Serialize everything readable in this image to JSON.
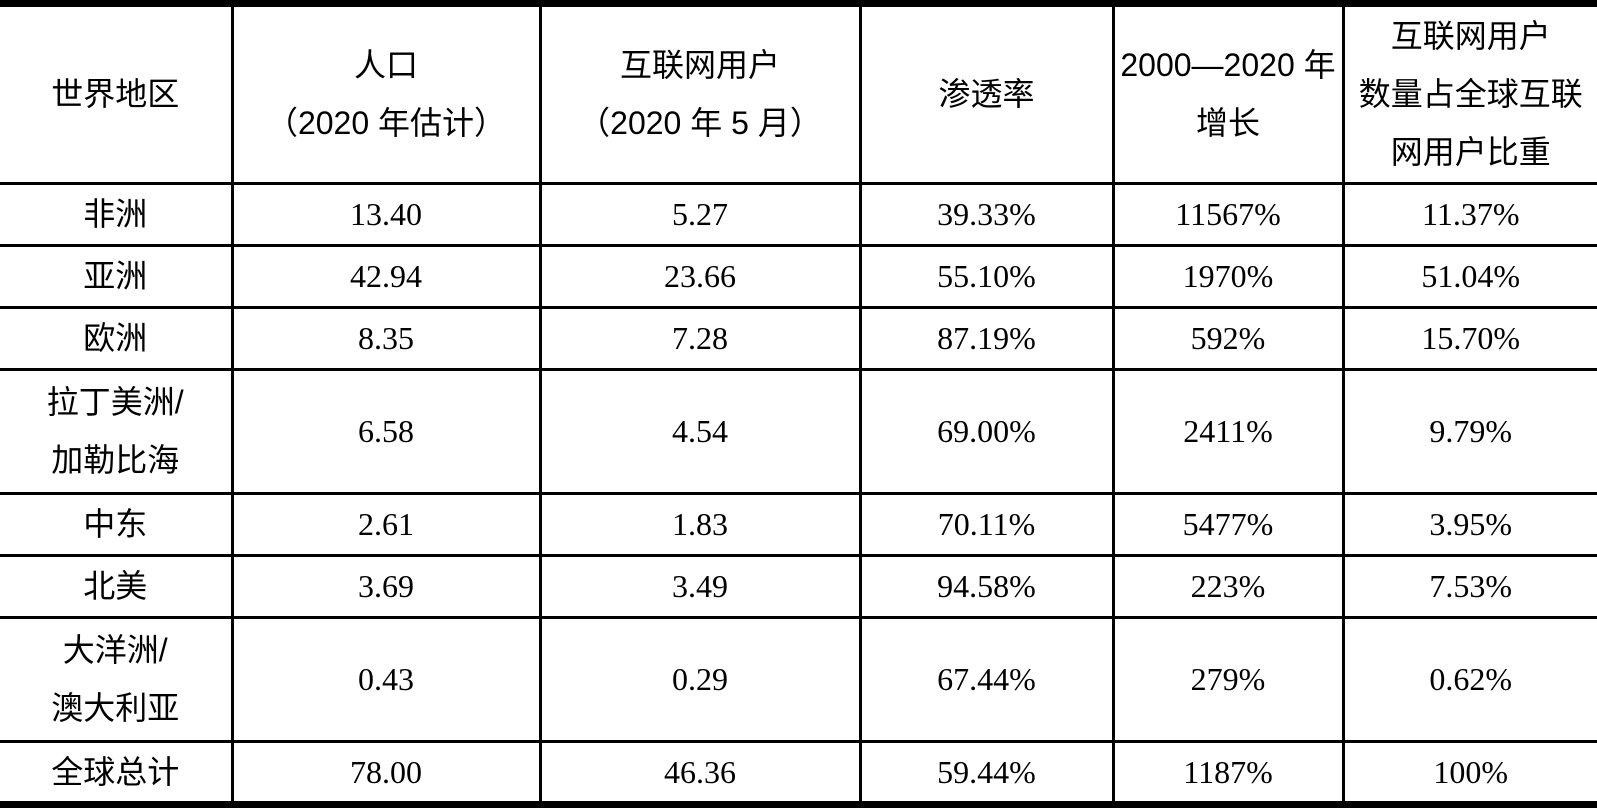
{
  "table": {
    "columns": [
      {
        "key": "region",
        "lines": [
          "世界地区"
        ]
      },
      {
        "key": "population",
        "lines": [
          "人口",
          "（2020 年估计）"
        ]
      },
      {
        "key": "internet_users",
        "lines": [
          "互联网用户",
          "（2020 年 5 月）"
        ]
      },
      {
        "key": "penetration",
        "lines": [
          "渗透率"
        ]
      },
      {
        "key": "growth",
        "lines": [
          "2000—2020 年",
          "增长"
        ]
      },
      {
        "key": "share",
        "lines": [
          "互联网用户",
          "数量占全球互联",
          "网用户比重"
        ]
      }
    ],
    "rows": [
      {
        "region": [
          "非洲"
        ],
        "values": [
          "13.40",
          "5.27",
          "39.33%",
          "11567%",
          "11.37%"
        ]
      },
      {
        "region": [
          "亚洲"
        ],
        "values": [
          "42.94",
          "23.66",
          "55.10%",
          "1970%",
          "51.04%"
        ]
      },
      {
        "region": [
          "欧洲"
        ],
        "values": [
          "8.35",
          "7.28",
          "87.19%",
          "592%",
          "15.70%"
        ]
      },
      {
        "region": [
          "拉丁美洲/",
          "加勒比海"
        ],
        "values": [
          "6.58",
          "4.54",
          "69.00%",
          "2411%",
          "9.79%"
        ]
      },
      {
        "region": [
          "中东"
        ],
        "values": [
          "2.61",
          "1.83",
          "70.11%",
          "5477%",
          "3.95%"
        ]
      },
      {
        "region": [
          "北美"
        ],
        "values": [
          "3.69",
          "3.49",
          "94.58%",
          "223%",
          "7.53%"
        ]
      },
      {
        "region": [
          "大洋洲/",
          "澳大利亚"
        ],
        "values": [
          "0.43",
          "0.29",
          "67.44%",
          "279%",
          "0.62%"
        ]
      },
      {
        "region": [
          "全球总计"
        ],
        "values": [
          "78.00",
          "46.36",
          "59.44%",
          "1187%",
          "100%"
        ]
      }
    ]
  }
}
